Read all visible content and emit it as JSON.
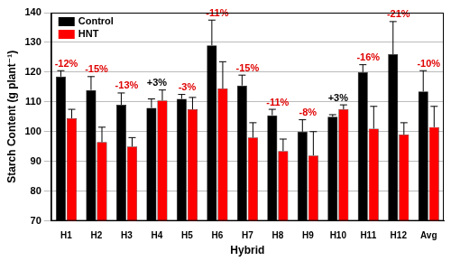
{
  "chart_data": {
    "type": "bar",
    "categories": [
      "H1",
      "H2",
      "H3",
      "H4",
      "H5",
      "H6",
      "H7",
      "H8",
      "H9",
      "H10",
      "H11",
      "H12",
      "Avg"
    ],
    "series": [
      {
        "name": "Control",
        "color": "#000000",
        "values": [
          118.5,
          114,
          109,
          108,
          111,
          129,
          115.5,
          105.5,
          100,
          105,
          120,
          126,
          113.5
        ],
        "errors": [
          2,
          4.5,
          4,
          3,
          1.5,
          8.5,
          3.5,
          2,
          4,
          0.7,
          2.5,
          11,
          7
        ]
      },
      {
        "name": "HNT",
        "color": "#ff0000",
        "values": [
          104.5,
          96.5,
          95,
          110.5,
          107.5,
          114.5,
          98,
          93.5,
          92,
          107.5,
          101,
          99,
          101.5
        ],
        "errors": [
          3,
          5,
          3,
          3.5,
          4,
          9,
          5,
          4,
          8,
          1.5,
          7.5,
          4,
          7
        ]
      }
    ],
    "annotations": [
      "-12%",
      "-15%",
      "-13%",
      "+3%",
      "-3%",
      "-11%",
      "-15%",
      "-11%",
      "-8%",
      "+3%",
      "-16%",
      "-21%",
      "-10%"
    ],
    "xlabel": "Hybrid",
    "ylabel": "Starch Content (g plant⁻¹)",
    "ylim": [
      70,
      140
    ],
    "yticks": [
      70,
      80,
      90,
      100,
      110,
      120,
      130,
      140
    ],
    "grid": true,
    "legend": "upper left"
  }
}
